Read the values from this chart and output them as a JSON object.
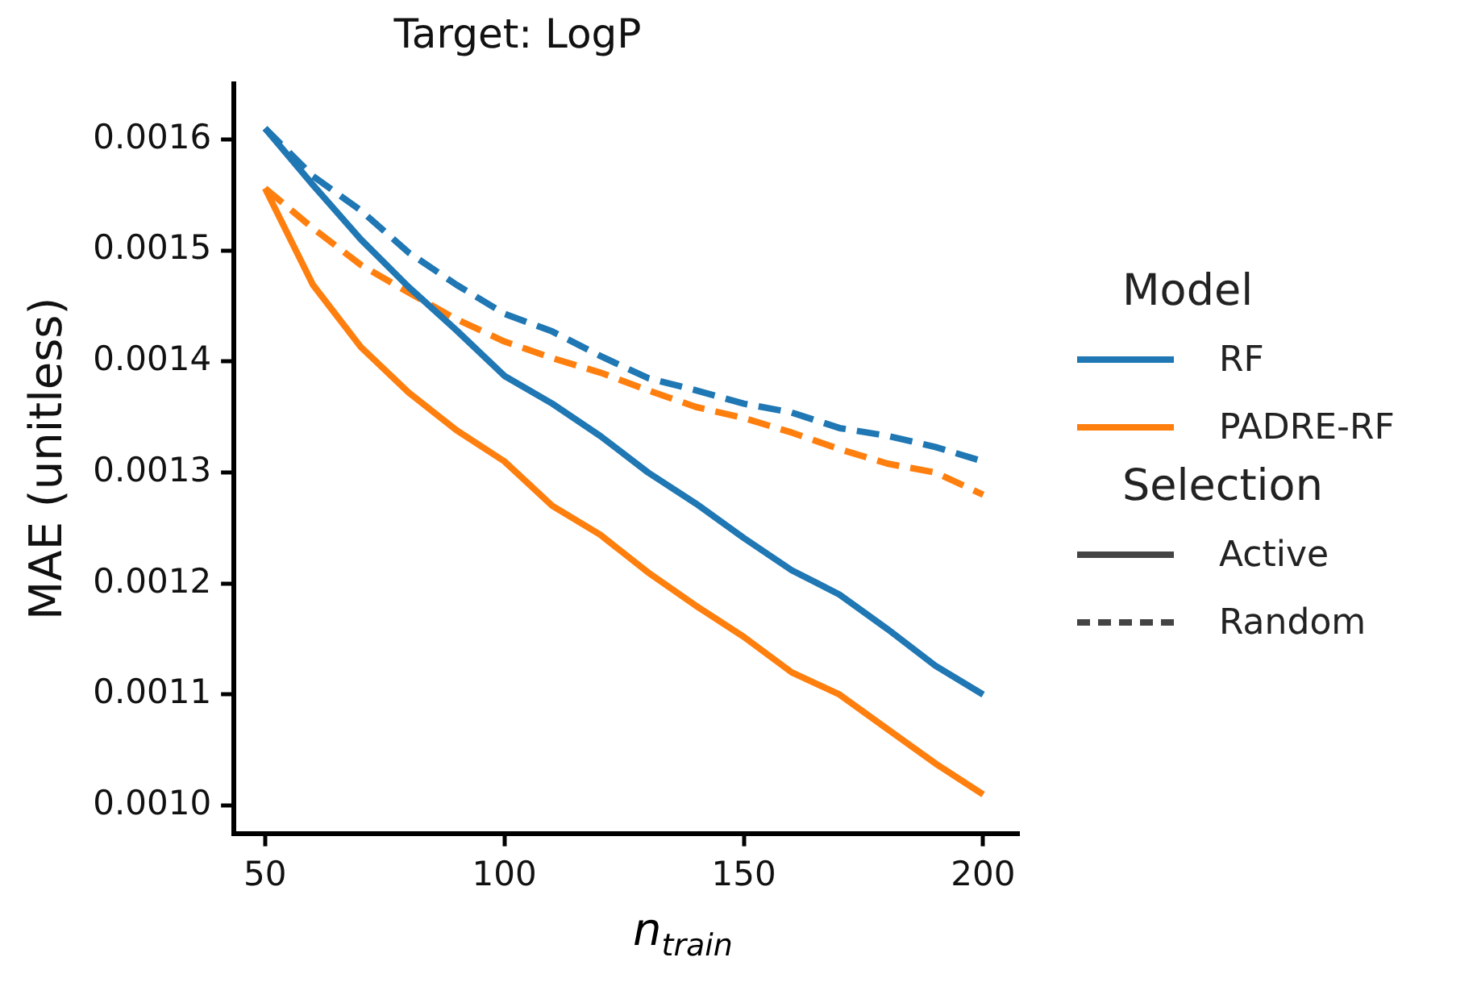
{
  "chart_data": {
    "type": "line",
    "title": "Target: LogP",
    "xlabel": "n$_{train}$",
    "ylabel": "MAE (unitless)",
    "legend_title": "Model",
    "legend": "right",
    "grid": false,
    "marker": "none",
    "x": [
      50,
      60,
      70,
      80,
      90,
      100,
      110,
      120,
      130,
      140,
      150,
      160,
      170,
      180,
      190,
      200
    ],
    "xlim": [
      43.5,
      207.5
    ],
    "xticks": [
      50,
      100,
      150,
      200
    ],
    "ylim": [
      0.000975,
      0.00165
    ],
    "yticks": [
      {
        "value": 0.001,
        "label": "0.0010"
      },
      0.0011,
      0.0012,
      0.0013,
      0.0014,
      0.0015,
      0.0016
    ],
    "annotations": [
      "Selection",
      "Active",
      "Random"
    ],
    "series": [
      {
        "name": "RF",
        "color": "#1f77b4",
        "line_style": "solid",
        "values": [
          0.00161,
          0.001559,
          0.00151,
          0.001467,
          0.001428,
          0.001387,
          0.001362,
          0.001333,
          0.0013,
          0.001272,
          0.001241,
          0.001212,
          0.00119,
          0.001159,
          0.001126,
          0.0011
        ]
      },
      {
        "name": "PADRE-RF",
        "color": "#ff7f0e",
        "line_style": "solid",
        "values": [
          0.001556,
          0.001469,
          0.001413,
          0.001372,
          0.001338,
          0.00131,
          0.00127,
          0.001244,
          0.00121,
          0.00118,
          0.001152,
          0.00112,
          0.0011,
          0.001069,
          0.001038,
          0.00101
        ]
      },
      {
        "color": "#1f77b4",
        "line_style": "dashed",
        "values": [
          0.00161,
          0.001567,
          0.001536,
          0.001498,
          0.001469,
          0.001443,
          0.001427,
          0.001405,
          0.001385,
          0.001374,
          0.001362,
          0.001354,
          0.00134,
          0.001333,
          0.001323,
          0.00131
        ]
      },
      {
        "color": "#ff7f0e",
        "line_style": "dashed",
        "values": [
          0.001556,
          0.00152,
          0.001487,
          0.001462,
          0.001438,
          0.001418,
          0.001403,
          0.00139,
          0.001374,
          0.001359,
          0.001349,
          0.001336,
          0.001321,
          0.001308,
          0.0013,
          0.00128
        ]
      }
    ]
  }
}
